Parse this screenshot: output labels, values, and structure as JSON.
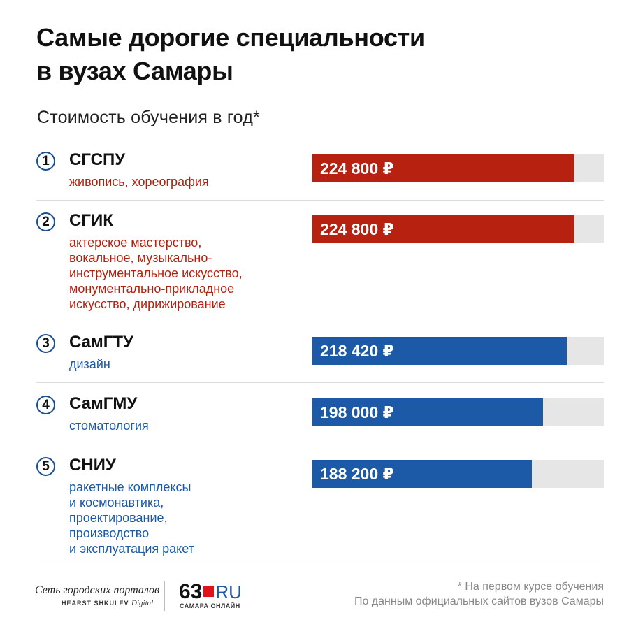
{
  "title_lines": [
    "Самые дорогие специальности",
    "в вузах Самары"
  ],
  "subtitle": "Стоимость обучения в год*",
  "colors": {
    "red": "#b7210f",
    "blue": "#1c5aa8",
    "track": "#e6e6e6"
  },
  "chart_data": {
    "type": "bar",
    "orientation": "horizontal",
    "title": "Самые дорогие специальности в вузах Самары",
    "subtitle": "Стоимость обучения в год*",
    "categories": [
      "СГСПУ",
      "СГИК",
      "СамГТУ",
      "СамГМУ",
      "СНИУ"
    ],
    "values": [
      224800,
      224800,
      218420,
      198000,
      188200
    ],
    "unit": "₽",
    "xlim": [
      0,
      250000
    ],
    "grid": false,
    "legend": "none",
    "items": [
      {
        "rank": "1",
        "university": "СГСПУ",
        "specialties_lines": [
          "живопись, хореография"
        ],
        "value": 224800,
        "label": "224 800 ₽",
        "color": "red"
      },
      {
        "rank": "2",
        "university": "СГИК",
        "specialties_lines": [
          "актерское мастерство,",
          "вокальное, музыкально-",
          "инструментальное искусство,",
          "монументально-прикладное",
          "искусство, дирижирование"
        ],
        "value": 224800,
        "label": "224 800 ₽",
        "color": "red"
      },
      {
        "rank": "3",
        "university": "СамГТУ",
        "specialties_lines": [
          "дизайн"
        ],
        "value": 218420,
        "label": "218 420 ₽",
        "color": "blue"
      },
      {
        "rank": "4",
        "university": "СамГМУ",
        "specialties_lines": [
          "стоматология"
        ],
        "value": 198000,
        "label": "198 000 ₽",
        "color": "blue"
      },
      {
        "rank": "5",
        "university": "СНИУ",
        "specialties_lines": [
          "ракетные комплексы",
          "и космонавтика,",
          "проектирование,",
          "производство",
          "и эксплуатация ракет"
        ],
        "value": 188200,
        "label": "188 200 ₽",
        "color": "blue"
      }
    ]
  },
  "footer": {
    "logo_network": "Сеть городских порталов",
    "logo_hearst": "HEARST SHKULEV",
    "logo_hearst_digital": "Digital",
    "logo_63_number": "63",
    "logo_63_ru": "RU",
    "logo_63_sub": "САМАРА ОНЛАЙН",
    "note_lines": [
      "* На первом курсе обучения",
      "По данным официальных сайтов вузов Самары"
    ]
  }
}
